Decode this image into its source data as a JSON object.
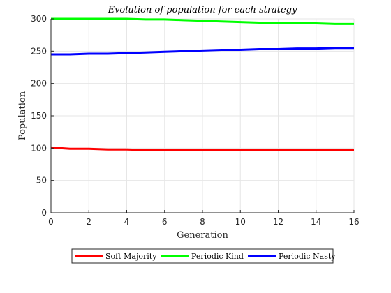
{
  "chart_data": {
    "type": "line",
    "title": "Evolution of population for each strategy",
    "xlabel": "Generation",
    "ylabel": "Population",
    "xlim": [
      0,
      16
    ],
    "ylim": [
      0,
      300
    ],
    "xticks": [
      0,
      2,
      4,
      6,
      8,
      10,
      12,
      14,
      16
    ],
    "yticks": [
      0,
      50,
      100,
      150,
      200,
      250,
      300
    ],
    "grid": true,
    "legend_position": "bottom-outside",
    "x": [
      0,
      1,
      2,
      3,
      4,
      5,
      6,
      7,
      8,
      9,
      10,
      11,
      12,
      13,
      14,
      15,
      16
    ],
    "series": [
      {
        "name": "Soft Majority",
        "color": "#ff0000",
        "values": [
          101,
          99,
          99,
          98,
          98,
          97,
          97,
          97,
          97,
          97,
          97,
          97,
          97,
          97,
          97,
          97,
          97
        ]
      },
      {
        "name": "Periodic Kind",
        "color": "#00ff00",
        "values": [
          300,
          300,
          300,
          300,
          300,
          299,
          299,
          298,
          297,
          296,
          295,
          294,
          294,
          293,
          293,
          292,
          292
        ]
      },
      {
        "name": "Periodic Nasty",
        "color": "#0000ff",
        "values": [
          245,
          245,
          246,
          246,
          247,
          248,
          249,
          250,
          251,
          252,
          252,
          253,
          253,
          254,
          254,
          255,
          255
        ]
      }
    ]
  }
}
